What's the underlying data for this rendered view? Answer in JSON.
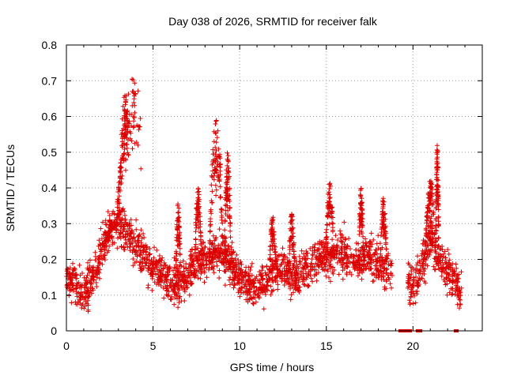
{
  "chart_data": {
    "type": "scatter",
    "title": "Day 038 of 2026, SRMTID for receiver falk",
    "xlabel": "GPS time / hours",
    "ylabel": "SRMTID / TECUs",
    "xlim": [
      0,
      24
    ],
    "ylim": [
      0,
      0.8
    ],
    "xticks": [
      0,
      5,
      10,
      15,
      20
    ],
    "xtick_labels": [
      "0",
      "5",
      "10",
      "15",
      "20"
    ],
    "yticks": [
      0,
      0.1,
      0.2,
      0.3,
      0.4,
      0.5,
      0.6,
      0.7,
      0.8
    ],
    "ytick_labels": [
      "0",
      "0.1",
      "0.2",
      "0.3",
      "0.4",
      "0.5",
      "0.6",
      "0.7",
      "0.8"
    ],
    "grid": true,
    "marker": "plus",
    "color": "#dd0000",
    "trend": [
      [
        0.0,
        0.15
      ],
      [
        0.5,
        0.13
      ],
      [
        1.0,
        0.11
      ],
      [
        1.5,
        0.14
      ],
      [
        2.0,
        0.22
      ],
      [
        2.5,
        0.28
      ],
      [
        3.0,
        0.3
      ],
      [
        3.5,
        0.28
      ],
      [
        4.0,
        0.24
      ],
      [
        4.5,
        0.21
      ],
      [
        5.0,
        0.18
      ],
      [
        5.5,
        0.15
      ],
      [
        6.0,
        0.13
      ],
      [
        6.5,
        0.13
      ],
      [
        7.0,
        0.15
      ],
      [
        7.5,
        0.19
      ],
      [
        8.0,
        0.2
      ],
      [
        8.5,
        0.22
      ],
      [
        9.0,
        0.22
      ],
      [
        9.5,
        0.19
      ],
      [
        10.0,
        0.14
      ],
      [
        10.5,
        0.13
      ],
      [
        11.0,
        0.13
      ],
      [
        11.5,
        0.14
      ],
      [
        12.0,
        0.17
      ],
      [
        12.5,
        0.18
      ],
      [
        13.0,
        0.15
      ],
      [
        13.5,
        0.15
      ],
      [
        14.0,
        0.18
      ],
      [
        14.5,
        0.2
      ],
      [
        15.0,
        0.21
      ],
      [
        15.5,
        0.21
      ],
      [
        16.0,
        0.22
      ],
      [
        16.5,
        0.2
      ],
      [
        17.0,
        0.19
      ],
      [
        17.5,
        0.21
      ],
      [
        18.0,
        0.18
      ],
      [
        18.5,
        0.17
      ],
      [
        19.0,
        0.16
      ],
      [
        19.5,
        0.14
      ],
      [
        20.0,
        0.13
      ],
      [
        20.5,
        0.18
      ],
      [
        21.0,
        0.27
      ],
      [
        21.5,
        0.2
      ],
      [
        22.0,
        0.17
      ],
      [
        22.5,
        0.13
      ],
      [
        22.8,
        0.11
      ]
    ],
    "gaps": [
      [
        18.8,
        19.7
      ],
      [
        20.1,
        20.15
      ]
    ],
    "spikes": [
      {
        "x0": 2.2,
        "x1": 4.3,
        "peak": 0.71,
        "center": 3.9
      },
      {
        "x0": 2.8,
        "x1": 3.6,
        "peak": 0.67,
        "center": 3.4
      },
      {
        "x0": 8.2,
        "x1": 9.0,
        "peak": 0.61,
        "center": 8.65
      },
      {
        "x0": 9.1,
        "x1": 9.5,
        "peak": 0.5,
        "center": 9.3
      },
      {
        "x0": 6.3,
        "x1": 6.6,
        "peak": 0.36,
        "center": 6.45
      },
      {
        "x0": 7.4,
        "x1": 7.8,
        "peak": 0.4,
        "center": 7.6
      },
      {
        "x0": 11.7,
        "x1": 12.1,
        "peak": 0.32,
        "center": 11.9
      },
      {
        "x0": 12.8,
        "x1": 13.2,
        "peak": 0.33,
        "center": 13.0
      },
      {
        "x0": 14.9,
        "x1": 15.4,
        "peak": 0.43,
        "center": 15.2
      },
      {
        "x0": 16.9,
        "x1": 17.2,
        "peak": 0.4,
        "center": 17.0
      },
      {
        "x0": 18.1,
        "x1": 18.5,
        "peak": 0.38,
        "center": 18.3
      },
      {
        "x0": 20.6,
        "x1": 21.2,
        "peak": 0.43,
        "center": 21.0
      },
      {
        "x0": 21.3,
        "x1": 21.5,
        "peak": 0.52,
        "center": 21.4
      }
    ],
    "zero_points_x": [
      19.3,
      19.5,
      19.7,
      19.8,
      20.3,
      20.4,
      22.5
    ],
    "point_count": 2400,
    "seed": 38
  }
}
